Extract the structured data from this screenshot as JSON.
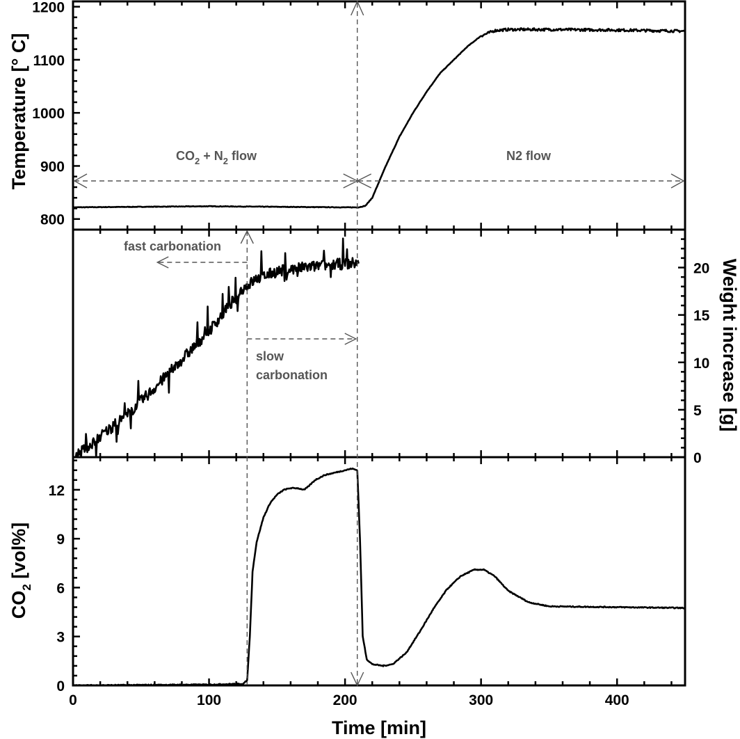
{
  "chart_data": {
    "type": "line",
    "xlabel": "Time [min]",
    "xlim": [
      0,
      450
    ],
    "xticks": [
      0,
      100,
      200,
      300,
      400
    ],
    "grid": false,
    "panels": [
      {
        "ylabel": "Temperature [° C]",
        "ylim": [
          780,
          1210
        ],
        "yticks": [
          800,
          900,
          1000,
          1100,
          1200
        ],
        "y_axis_side": "left",
        "series": {
          "x": [
            0,
            50,
            100,
            150,
            200,
            210,
            215,
            220,
            230,
            240,
            250,
            260,
            270,
            280,
            290,
            300,
            310,
            320,
            350,
            400,
            450
          ],
          "y": [
            822,
            823,
            824,
            823,
            822,
            822,
            825,
            840,
            900,
            955,
            1000,
            1040,
            1075,
            1100,
            1125,
            1145,
            1155,
            1157,
            1157,
            1156,
            1154
          ]
        },
        "annotations": [
          "CO2 + N2 flow",
          "N2 flow"
        ]
      },
      {
        "ylabel": "Weight increase [g]",
        "ylim": [
          0,
          24
        ],
        "yticks": [
          0,
          5,
          10,
          15,
          20
        ],
        "y_axis_side": "right",
        "series": {
          "x": [
            0,
            10,
            20,
            40,
            60,
            80,
            100,
            115,
            125,
            135,
            150,
            170,
            190,
            210
          ],
          "y": [
            0,
            1.0,
            2.2,
            4.5,
            7.3,
            10.3,
            13.3,
            16.0,
            17.8,
            18.8,
            19.6,
            20.0,
            20.3,
            20.5
          ]
        },
        "annotations": [
          "fast carbonation",
          "slow",
          "carbonation"
        ]
      },
      {
        "ylabel_main": "CO",
        "ylabel_sub": "2",
        "ylabel_rest": " [vol%]",
        "ylim": [
          0,
          14
        ],
        "yticks": [
          0,
          3,
          6,
          9,
          12
        ],
        "y_axis_side": "left",
        "series": {
          "x": [
            0,
            100,
            125,
            128,
            130,
            132,
            135,
            140,
            145,
            150,
            155,
            160,
            165,
            170,
            173,
            178,
            185,
            195,
            205,
            209,
            211,
            213,
            216,
            220,
            228,
            235,
            245,
            255,
            265,
            275,
            285,
            295,
            302,
            310,
            320,
            335,
            350,
            400,
            450
          ],
          "y": [
            0,
            0.05,
            0.1,
            0.3,
            3.0,
            7.0,
            8.8,
            10.3,
            11.2,
            11.7,
            12.0,
            12.1,
            12.1,
            12.0,
            12.2,
            12.6,
            12.9,
            13.1,
            13.3,
            13.2,
            9.0,
            3.0,
            1.6,
            1.3,
            1.2,
            1.3,
            2.0,
            3.3,
            4.7,
            5.9,
            6.7,
            7.1,
            7.1,
            6.7,
            5.8,
            5.1,
            4.85,
            4.8,
            4.75
          ]
        }
      }
    ],
    "markers": {
      "gas_switch_time": 209,
      "slow_carbonation_start": 128
    },
    "annotation_labels": {
      "top_left_co": "CO",
      "top_left_sub1": "2",
      "top_left_plus": " + N",
      "top_left_sub2": "2",
      "top_left_flow": " flow",
      "top_right_n": "N",
      "top_right_sub": "2",
      "top_right_flow": " flow",
      "fast": "fast carbonation",
      "slow1": "slow",
      "slow2": "carbonation"
    },
    "colors": {
      "line": "#000000",
      "annotation": "#555555"
    }
  }
}
